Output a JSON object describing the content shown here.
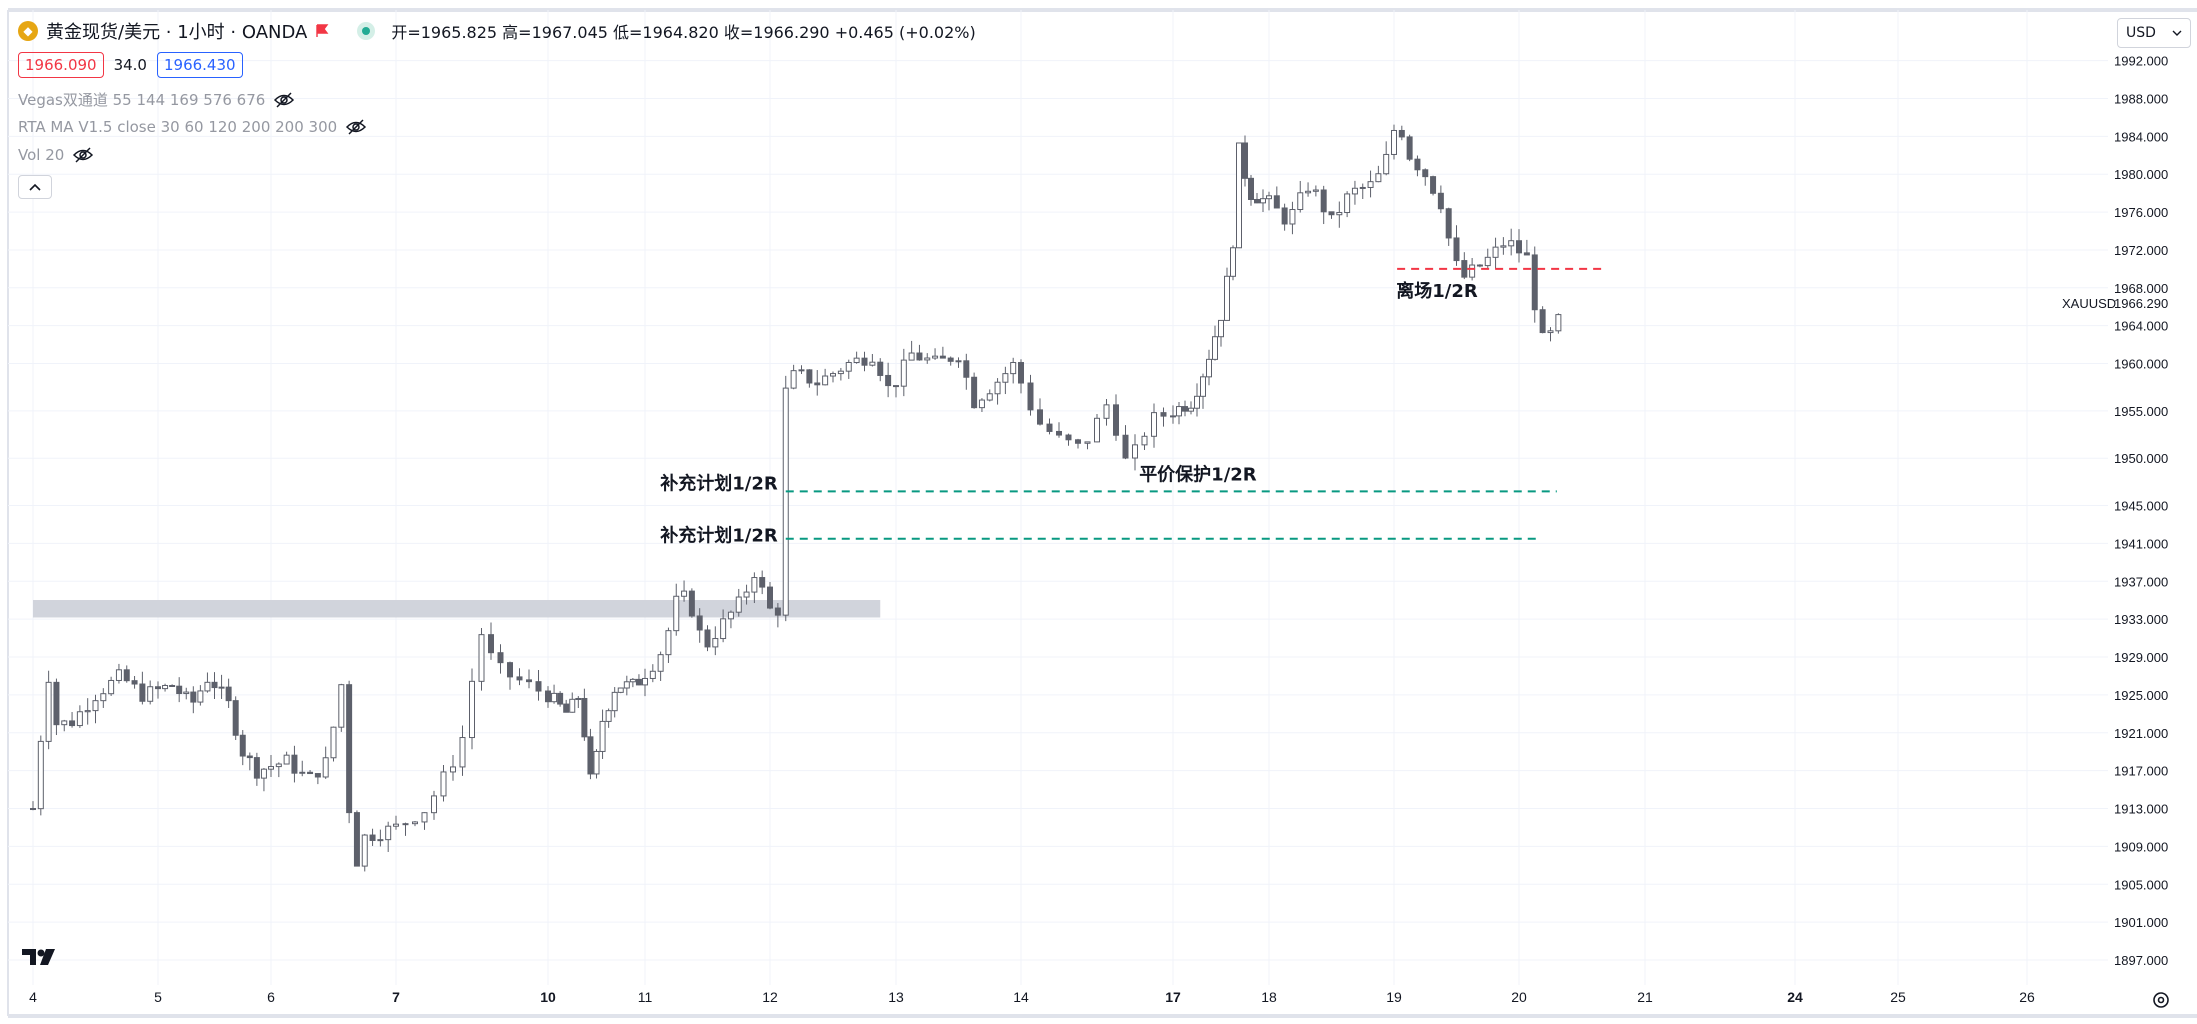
{
  "header": {
    "symbol_title": "黄金现货/美元 · 1小时 · OANDA",
    "ohlc": "开=1965.825 高=1967.045 低=1964.820 收=1966.290 +0.465 (+0.02%)",
    "bid": "1966.090",
    "spread": "34.0",
    "ask": "1966.430",
    "currency": "USD"
  },
  "indicators": [
    {
      "label": "Vegas双通道 55 144 169 576 676"
    },
    {
      "label": "RTA MA V1.5 close 30 60 120 200 200 300"
    },
    {
      "label": "Vol 20"
    }
  ],
  "icons": {
    "symbol": "gold-coin-icon",
    "flag": "flag-icon",
    "live": "market-open-icon",
    "eye": "eye-off-icon",
    "collapse": "chevron-up-icon",
    "logo": "tradingview-logo-icon",
    "settings": "settings-icon"
  },
  "colors": {
    "candle_up": "#ffffff",
    "candle_down": "#5d606b",
    "candle_border": "#5d606b",
    "target_line": "#089981",
    "exit_line": "#f23645",
    "zone": "#d1d4dc",
    "grid": "#f0f3fa"
  },
  "chart_data": {
    "type": "candlestick",
    "symbol": "XAUUSD",
    "last_price": "1966.290",
    "ylim": [
      1893,
      1995
    ],
    "y_ticks": [
      "1992.000",
      "1988.000",
      "1984.000",
      "1980.000",
      "1976.000",
      "1972.000",
      "1968.000",
      "1964.000",
      "1960.000",
      "1955.000",
      "1950.000",
      "1945.000",
      "1941.000",
      "1937.000",
      "1933.000",
      "1929.000",
      "1925.000",
      "1921.000",
      "1917.000",
      "1913.000",
      "1909.000",
      "1905.000",
      "1901.000",
      "1897.000"
    ],
    "x_ticks": [
      "4",
      "5",
      "6",
      "7",
      "10",
      "11",
      "12",
      "13",
      "14",
      "17",
      "18",
      "19",
      "20",
      "21",
      "24",
      "25",
      "26"
    ],
    "x_bold_ticks": [
      "7",
      "10",
      "17",
      "24"
    ],
    "grid": true,
    "close_path": [
      [
        0,
        1913
      ],
      [
        0.3,
        1922
      ],
      [
        0.5,
        1927
      ],
      [
        0.7,
        1922
      ],
      [
        1.2,
        1922
      ],
      [
        2,
        1925
      ],
      [
        2.8,
        1927
      ],
      [
        3.5,
        1925
      ],
      [
        4.5,
        1926
      ],
      [
        5.2,
        1924
      ],
      [
        5.8,
        1927
      ],
      [
        6.5,
        1924
      ],
      [
        7.0,
        1919
      ],
      [
        7.5,
        1917
      ],
      [
        8.5,
        1918
      ],
      [
        9.2,
        1916
      ],
      [
        9.8,
        1918
      ],
      [
        10.3,
        1927
      ],
      [
        10.5,
        1913
      ],
      [
        10.7,
        1907
      ],
      [
        11.0,
        1910
      ],
      [
        12.0,
        1911
      ],
      [
        12.8,
        1913
      ],
      [
        13.5,
        1918
      ],
      [
        13.8,
        1921
      ],
      [
        14.2,
        1932
      ],
      [
        14.6,
        1928
      ],
      [
        15.0,
        1927
      ],
      [
        16.0,
        1925
      ],
      [
        16.8,
        1923
      ],
      [
        17.3,
        1925
      ],
      [
        17.8,
        1915
      ],
      [
        18.2,
        1922
      ],
      [
        18.8,
        1926
      ],
      [
        19.6,
        1926
      ],
      [
        20.2,
        1928
      ],
      [
        20.6,
        1930
      ],
      [
        21.1,
        1936
      ],
      [
        21.5,
        1934
      ],
      [
        21.9,
        1930
      ],
      [
        22.6,
        1933
      ],
      [
        23.1,
        1935
      ],
      [
        23.5,
        1938
      ],
      [
        24.0,
        1934
      ],
      [
        24.3,
        1934
      ],
      [
        24.5,
        1957
      ],
      [
        24.8,
        1959
      ],
      [
        25.5,
        1958
      ],
      [
        26.5,
        1960
      ],
      [
        27.3,
        1961
      ],
      [
        27.8,
        1957
      ],
      [
        28.5,
        1961
      ],
      [
        29.3,
        1960
      ],
      [
        30.0,
        1961
      ],
      [
        30.5,
        1956
      ],
      [
        31.2,
        1958
      ],
      [
        31.8,
        1960
      ],
      [
        32.4,
        1954
      ],
      [
        33.0,
        1952
      ],
      [
        33.6,
        1951
      ],
      [
        34.3,
        1956
      ],
      [
        34.8,
        1949
      ],
      [
        35.4,
        1954
      ],
      [
        36.0,
        1955
      ],
      [
        36.8,
        1956
      ],
      [
        37.4,
        1960
      ],
      [
        38.1,
        1966
      ],
      [
        38.5,
        1973
      ],
      [
        38.7,
        1983
      ],
      [
        39.2,
        1978
      ],
      [
        40.0,
        1977
      ],
      [
        40.6,
        1975
      ],
      [
        41.3,
        1979
      ],
      [
        42.0,
        1975
      ],
      [
        42.6,
        1978
      ],
      [
        43.4,
        1979
      ],
      [
        43.8,
        1982
      ],
      [
        44.1,
        1986
      ],
      [
        44.5,
        1982
      ],
      [
        45.0,
        1980
      ],
      [
        45.5,
        1977
      ],
      [
        45.9,
        1971
      ],
      [
        46.2,
        1969
      ],
      [
        47.0,
        1971
      ],
      [
        47.6,
        1973
      ],
      [
        48.3,
        1971
      ],
      [
        48.6,
        1964
      ],
      [
        48.8,
        1962
      ],
      [
        49.2,
        1964
      ],
      [
        49.4,
        1966
      ]
    ],
    "annotations": [
      {
        "label": "补充计划1/2R",
        "price": 1946.5,
        "color": "#089981",
        "style": "dashed",
        "x_start": 24.5,
        "x_end": 49.2
      },
      {
        "label": "补充计划1/2R",
        "price": 1941.5,
        "color": "#089981",
        "style": "dashed",
        "x_start": 24.5,
        "x_end": 48.7
      },
      {
        "label": "平价保护1/2R",
        "price": 1946.5,
        "color": "#089981",
        "style": "text"
      },
      {
        "label": "离场1/2R",
        "price": 1970.0,
        "color": "#f23645",
        "style": "dashed",
        "x_start": 44.1,
        "x_end": 50.7
      }
    ],
    "zones": [
      {
        "price_low": 1933.6,
        "price_high": 1934.6,
        "x_start": 0,
        "x_end": 27.5,
        "color": "#d1d4dc"
      }
    ]
  }
}
